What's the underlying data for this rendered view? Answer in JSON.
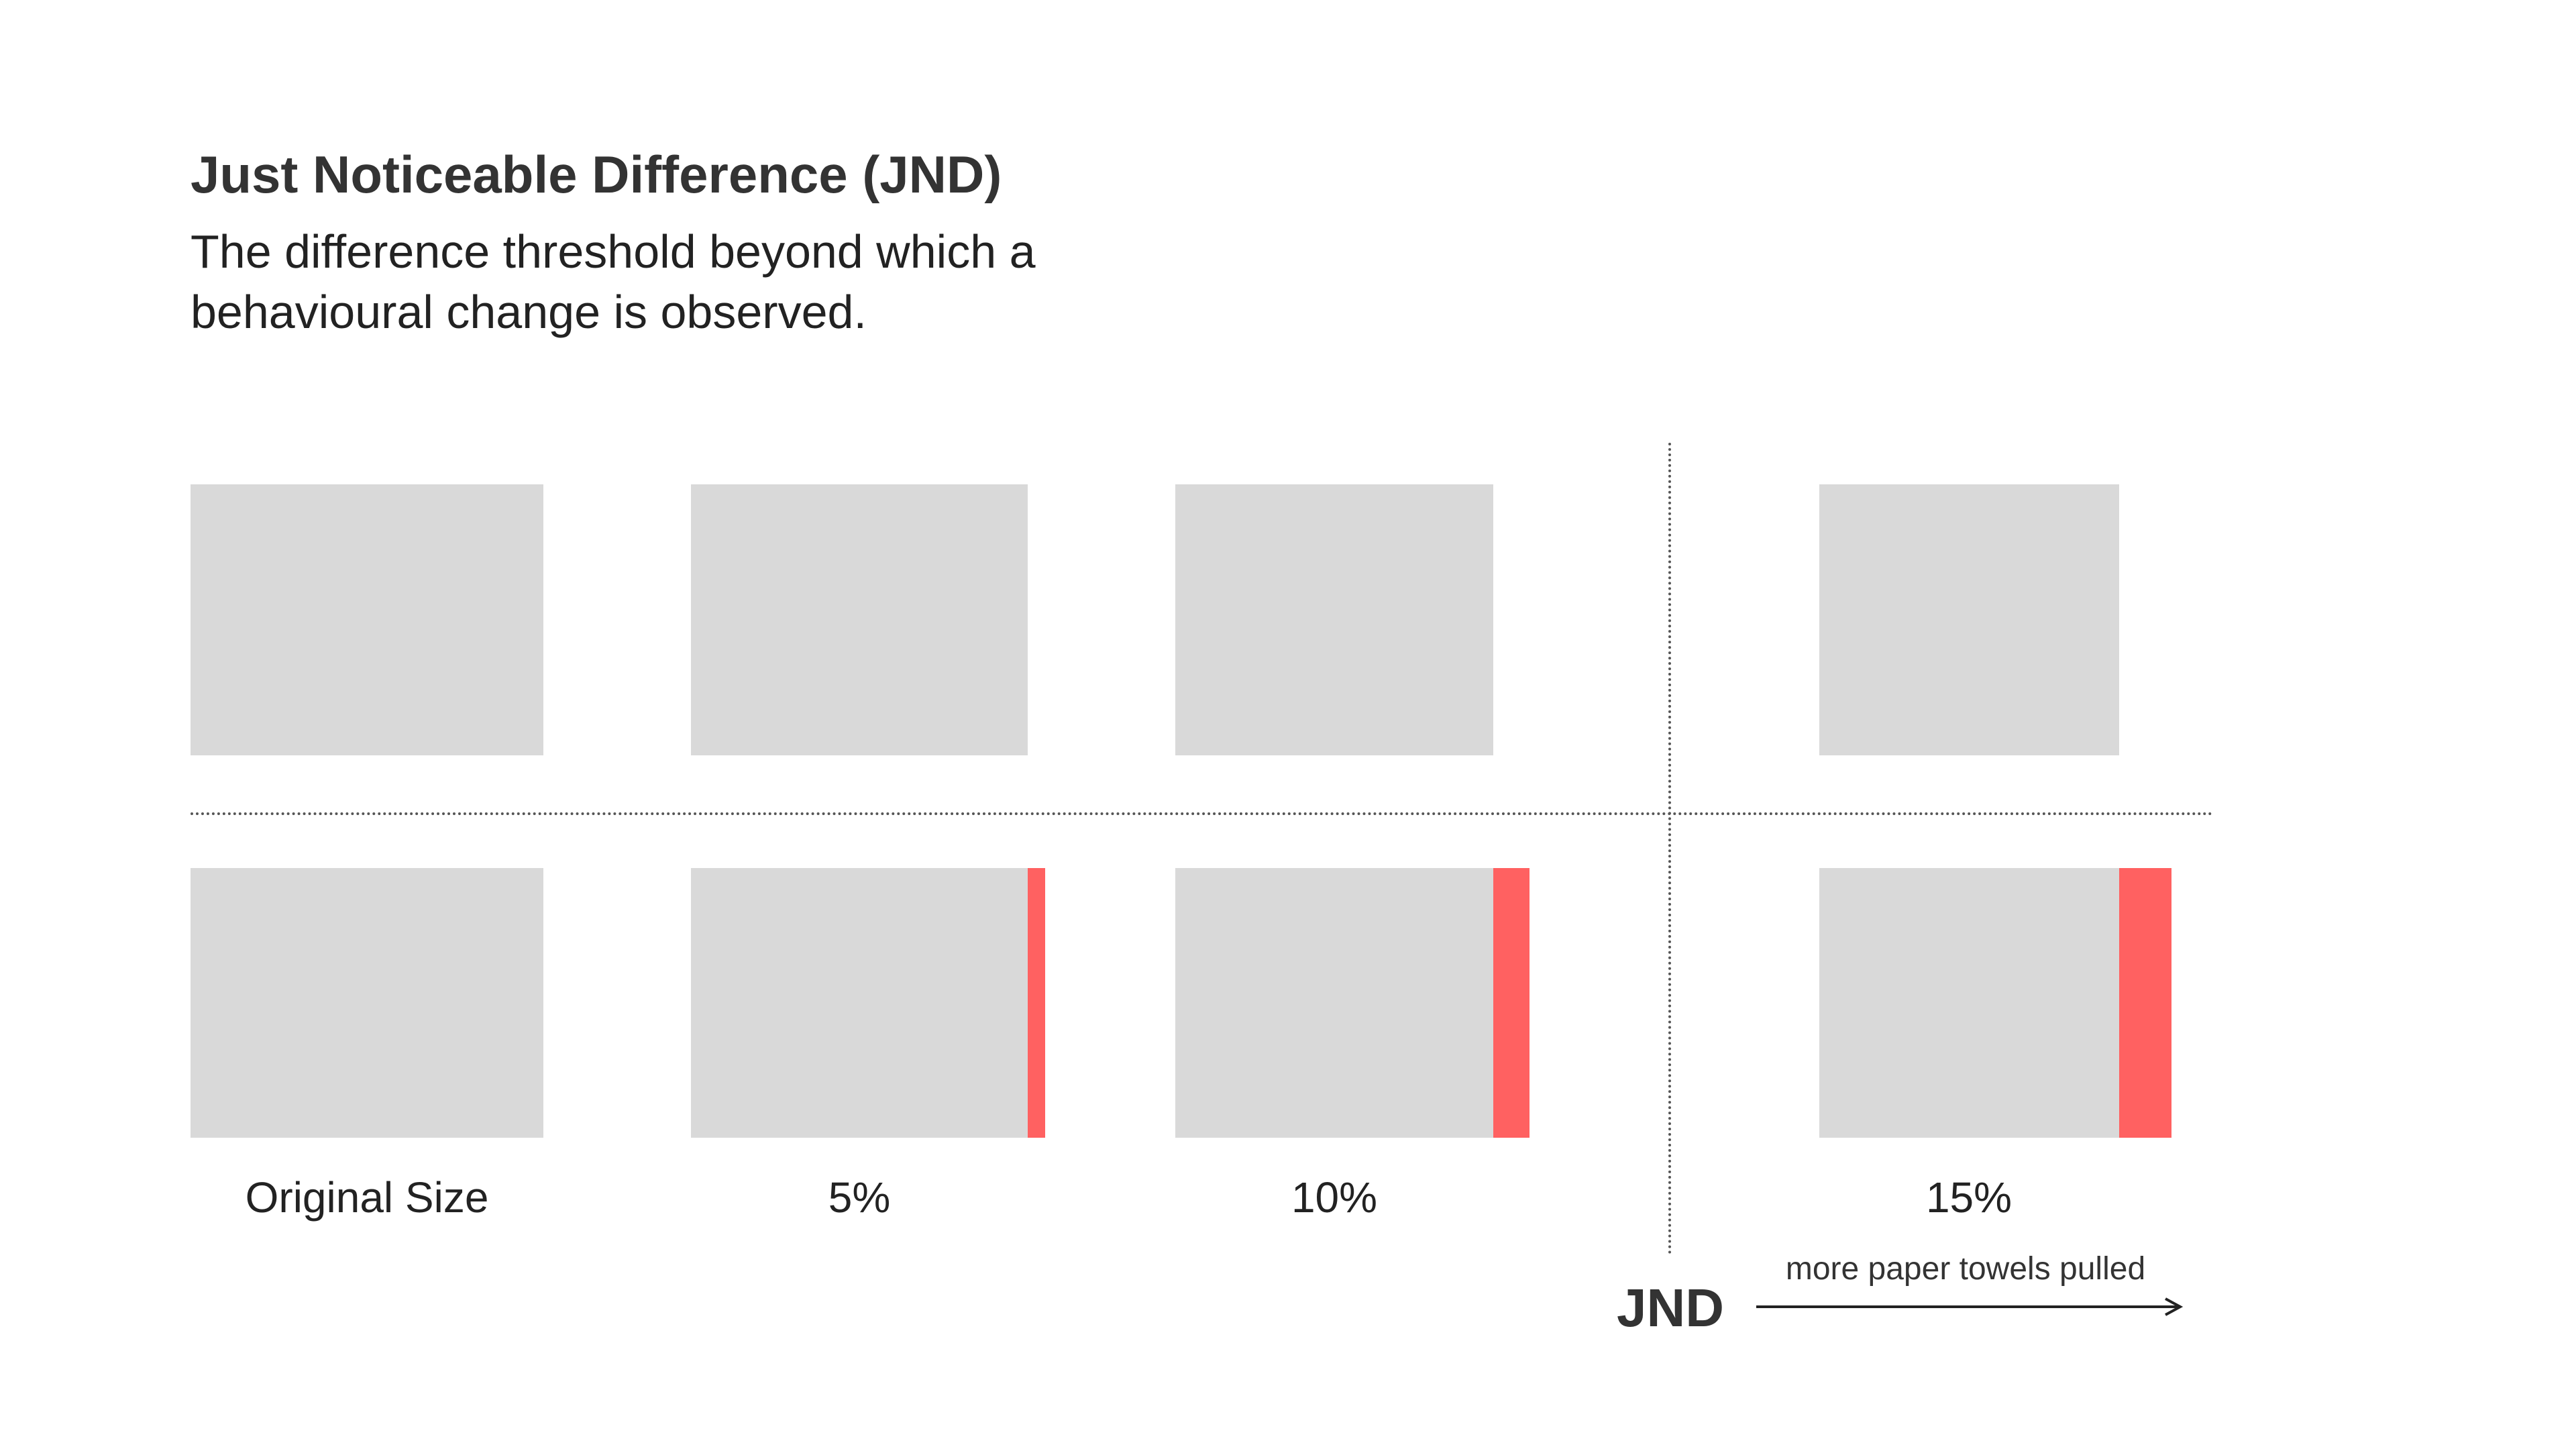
{
  "title": "Just Noticeable Difference (JND)",
  "subtitle_lines": [
    "The difference threshold beyond which a",
    "behavioural change is observed."
  ],
  "colors": {
    "box": "#d9d9d9",
    "increase": "#ff6161",
    "text": "#333333"
  },
  "columns": [
    {
      "label": "Original Size",
      "increase_percent": 0
    },
    {
      "label": "5%",
      "increase_percent": 5
    },
    {
      "label": "10%",
      "increase_percent": 10
    },
    {
      "label": "15%",
      "increase_percent": 15
    }
  ],
  "threshold": {
    "label": "JND",
    "arrow_label": "more paper towels pulled"
  }
}
